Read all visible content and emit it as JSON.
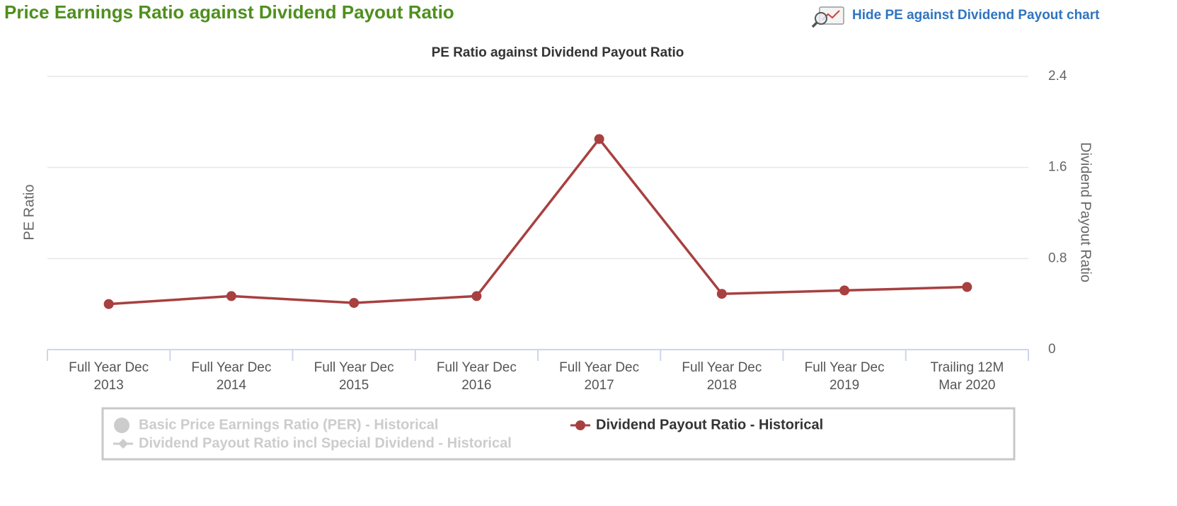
{
  "header": {
    "title": "Price Earnings Ratio against Dividend Payout Ratio",
    "link": "Hide PE against Dividend Payout chart"
  },
  "chart_data": {
    "type": "line",
    "title": "PE Ratio against Dividend Payout Ratio",
    "ylabel": "PE Ratio",
    "y2label": "Dividend Payout Ratio",
    "categories": [
      "Full Year Dec 2013",
      "Full Year Dec 2014",
      "Full Year Dec 2015",
      "Full Year Dec 2016",
      "Full Year Dec 2017",
      "Full Year Dec 2018",
      "Full Year Dec 2019",
      "Trailing 12M Mar 2020"
    ],
    "y2lim": [
      0,
      2.4
    ],
    "y2ticks": [
      0,
      0.8,
      1.6,
      2.4
    ],
    "grid": true,
    "series": [
      {
        "name": "Basic Price Earnings Ratio (PER) - Historical",
        "color": "#cccccc",
        "marker": "circle",
        "visible": false,
        "values": [
          null,
          null,
          null,
          null,
          null,
          null,
          null,
          null
        ]
      },
      {
        "name": "Dividend Payout Ratio incl Special Dividend - Historical",
        "color": "#cccccc",
        "marker": "diamond",
        "visible": false,
        "axis": "y2",
        "values": [
          null,
          null,
          null,
          null,
          null,
          null,
          null,
          null
        ]
      },
      {
        "name": "Dividend Payout Ratio - Historical",
        "color": "#a84040",
        "marker": "circle",
        "visible": true,
        "axis": "y2",
        "values": [
          0.4,
          0.47,
          0.41,
          0.47,
          1.85,
          0.49,
          0.52,
          0.55
        ]
      }
    ]
  }
}
